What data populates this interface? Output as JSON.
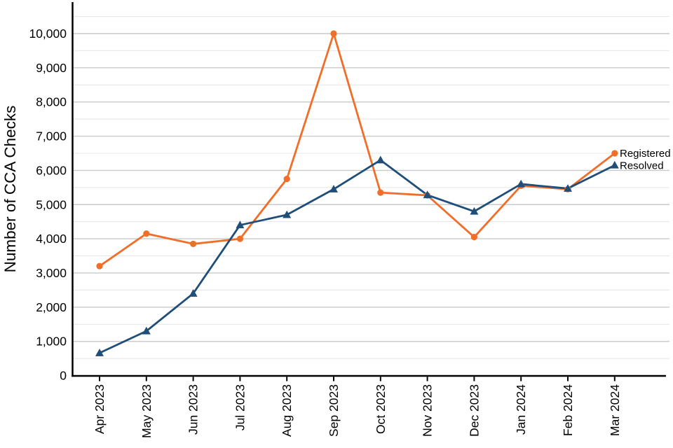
{
  "chart_data": {
    "type": "line",
    "title": "",
    "xlabel": "",
    "ylabel": "Number of CCA Checks",
    "categories": [
      "Apr 2023",
      "May 2023",
      "Jun 2023",
      "Jul 2023",
      "Aug 2023",
      "Sep 2023",
      "Oct 2023",
      "Nov 2023",
      "Dec 2023",
      "Jan 2024",
      "Feb 2024",
      "Mar 2024"
    ],
    "series": [
      {
        "name": "Registered",
        "color": "#F06E28",
        "marker": "circle",
        "values": [
          3200,
          4150,
          3850,
          4000,
          5750,
          10000,
          5350,
          5270,
          4050,
          5550,
          5450,
          6500
        ]
      },
      {
        "name": "Resolved",
        "color": "#1F4E79",
        "marker": "triangle-up",
        "values": [
          660,
          1300,
          2400,
          4400,
          4700,
          5450,
          6300,
          5280,
          4800,
          5600,
          5470,
          6150
        ]
      }
    ],
    "ylim": [
      0,
      10500
    ],
    "yticks": [
      0,
      1000,
      2000,
      3000,
      4000,
      5000,
      6000,
      7000,
      8000,
      9000,
      10000
    ],
    "ytick_labels": [
      "0",
      "1,000",
      "2,000",
      "3,000",
      "4,000",
      "5,000",
      "6,000",
      "7,000",
      "8,000",
      "9,000",
      "10,000"
    ],
    "grid": {
      "horizontal_major": true,
      "horizontal_minor": true,
      "major_color": "#C9C9C9",
      "minor_color": "#E4E4E4"
    },
    "axis_color": "#000000",
    "legend_position": "end-of-line-labels"
  }
}
